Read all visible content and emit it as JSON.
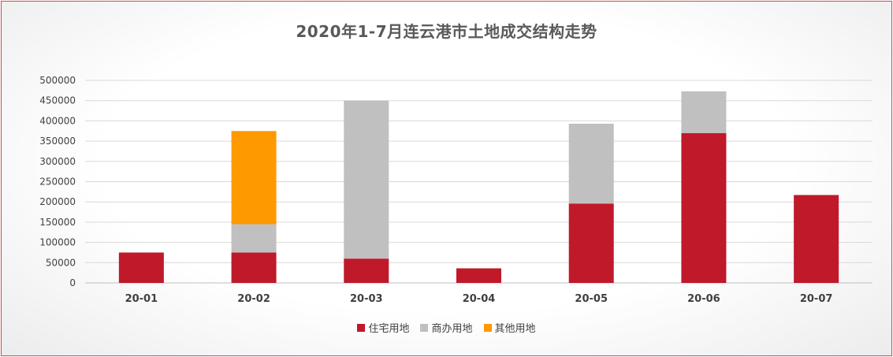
{
  "chart_data": {
    "type": "bar",
    "stacked": true,
    "title": "2020年1-7月连云港市土地成交结构走势",
    "categories": [
      "20-01",
      "20-02",
      "20-03",
      "20-04",
      "20-05",
      "20-06",
      "20-07"
    ],
    "series": [
      {
        "name": "住宅用地",
        "color": "#c0192a",
        "values": [
          75000,
          75000,
          60000,
          36000,
          196000,
          370000,
          217000
        ]
      },
      {
        "name": "商办用地",
        "color": "#c0c0c0",
        "values": [
          0,
          70000,
          390000,
          0,
          197000,
          103000,
          0
        ]
      },
      {
        "name": "其他用地",
        "color": "#ff9900",
        "values": [
          0,
          230000,
          0,
          0,
          0,
          0,
          0
        ]
      }
    ],
    "ylim": [
      0,
      500000
    ],
    "yticks": [
      "0",
      "50000",
      "100000",
      "150000",
      "200000",
      "250000",
      "300000",
      "350000",
      "400000",
      "450000",
      "500000"
    ],
    "grid": true,
    "legend_position": "bottom"
  }
}
